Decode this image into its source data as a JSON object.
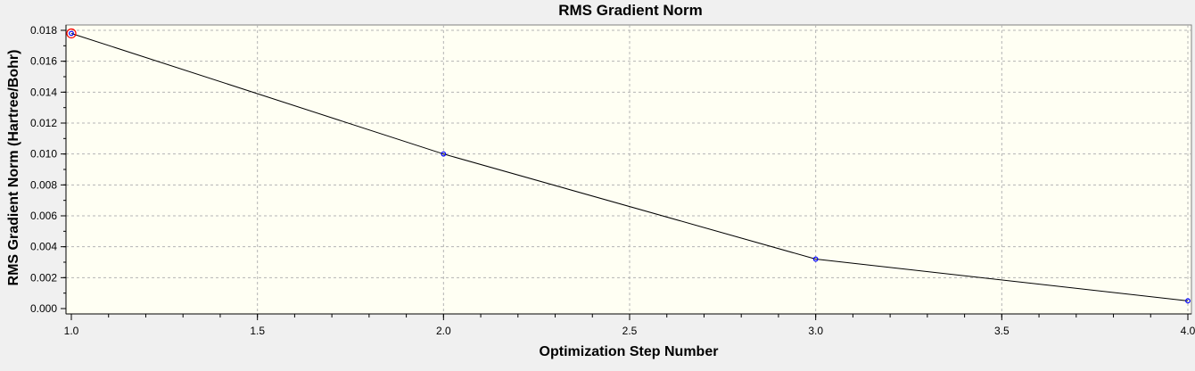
{
  "chart_data": {
    "type": "line",
    "title": "RMS Gradient Norm",
    "xlabel": "Optimization Step Number",
    "ylabel": "RMS Gradient Norm (Hartree/Bohr)",
    "xlim": [
      1.0,
      4.0
    ],
    "ylim": [
      0.0,
      0.018
    ],
    "x_ticks": [
      "1.0",
      "1.5",
      "2.0",
      "2.5",
      "3.0",
      "3.5",
      "4.0"
    ],
    "y_ticks": [
      "0.000",
      "0.002",
      "0.004",
      "0.006",
      "0.008",
      "0.010",
      "0.012",
      "0.014",
      "0.016",
      "0.018"
    ],
    "grid": true,
    "series": [
      {
        "x": [
          1,
          2,
          3,
          4
        ],
        "y": [
          0.0178,
          0.01,
          0.0032,
          0.0005
        ]
      }
    ],
    "highlighted_point": {
      "x": 1,
      "y": 0.0178
    },
    "colors": {
      "plot_background": "#fffff3",
      "page_background": "#f0f0f0",
      "line": "#000000",
      "marker": "#0000ff",
      "highlight": "#ff0000",
      "grid": "#b4b4b4"
    }
  }
}
